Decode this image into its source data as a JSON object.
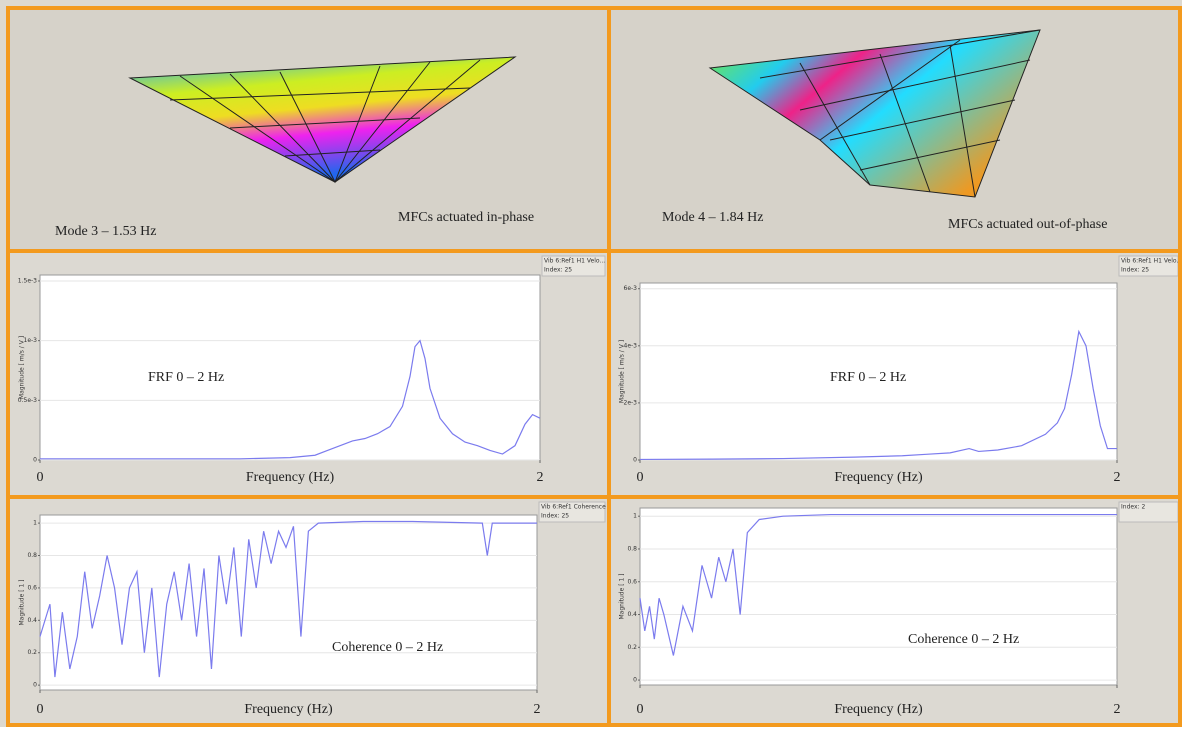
{
  "mode_panels": [
    {
      "mode": "Mode 3 – 1.53 Hz",
      "note": "MFCs actuated in-phase"
    },
    {
      "mode": "Mode 4 – 1.84 Hz",
      "note": "MFCs actuated out-of-phase"
    }
  ],
  "chart_data": [
    {
      "type": "line",
      "annotation": "FRF 0 – 2 Hz",
      "x_label": "Frequency (Hz)",
      "y_label": "Magnitude [ m/s / V ]",
      "legend_lines": [
        "Vib 6:Ref1 H1 Velo...",
        "Index: 25"
      ],
      "xlim": [
        0,
        2
      ],
      "xticks": [
        0,
        2
      ],
      "ylim": [
        0,
        0.00155
      ],
      "yticks": [
        0,
        {
          "value": 0.0005,
          "label": "0.5e-3"
        },
        {
          "value": 0.001,
          "label": "1e-3"
        },
        {
          "value": 0.0015,
          "label": "1.5e-3"
        }
      ],
      "grid": true,
      "x": [
        0,
        0.2,
        0.4,
        0.6,
        0.8,
        1.0,
        1.1,
        1.15,
        1.2,
        1.25,
        1.3,
        1.35,
        1.4,
        1.45,
        1.48,
        1.5,
        1.52,
        1.54,
        1.56,
        1.6,
        1.65,
        1.7,
        1.75,
        1.8,
        1.85,
        1.9,
        1.94,
        1.97,
        2.0
      ],
      "series": [
        {
          "color": "#7b7bee",
          "values": [
            1e-05,
            1e-05,
            1e-05,
            1e-05,
            1e-05,
            2e-05,
            4e-05,
            8e-05,
            0.00012,
            0.00016,
            0.00018,
            0.00022,
            0.00028,
            0.00045,
            0.0007,
            0.00095,
            0.001,
            0.00085,
            0.0006,
            0.00035,
            0.00022,
            0.00015,
            0.00012,
            8e-05,
            5e-05,
            0.00012,
            0.0003,
            0.00038,
            0.00035
          ]
        }
      ]
    },
    {
      "type": "line",
      "annotation": "FRF 0 – 2 Hz",
      "x_label": "Frequency (Hz)",
      "y_label": "Magnitude [ m/s / V ]",
      "legend_lines": [
        "Vib 6:Ref1 H1 Velo...",
        "Index: 25"
      ],
      "xlim": [
        0,
        2
      ],
      "xticks": [
        0,
        2
      ],
      "ylim": [
        0,
        0.0062
      ],
      "yticks": [
        0,
        {
          "value": 0.002,
          "label": "2e-3"
        },
        {
          "value": 0.004,
          "label": "4e-3"
        },
        {
          "value": 0.006,
          "label": "6e-3"
        }
      ],
      "grid": true,
      "x": [
        0,
        0.3,
        0.6,
        0.9,
        1.1,
        1.2,
        1.3,
        1.38,
        1.42,
        1.5,
        1.6,
        1.7,
        1.75,
        1.78,
        1.81,
        1.84,
        1.87,
        1.9,
        1.93,
        1.96,
        2.0
      ],
      "series": [
        {
          "color": "#7b7bee",
          "values": [
            2e-05,
            3e-05,
            5e-05,
            0.0001,
            0.00015,
            0.0002,
            0.00025,
            0.0004,
            0.0003,
            0.00035,
            0.0005,
            0.0009,
            0.0013,
            0.0018,
            0.003,
            0.0045,
            0.004,
            0.0025,
            0.0012,
            0.0004,
            0.0004
          ]
        }
      ]
    },
    {
      "type": "line",
      "annotation": "Coherence 0 – 2 Hz",
      "x_label": "Frequency (Hz)",
      "y_label": "Magnitude [ 1 ]",
      "legend_lines": [
        "Vib 6:Ref1 Coherence",
        "Index: 25"
      ],
      "xlim": [
        0,
        2
      ],
      "xticks": [
        0,
        2
      ],
      "ylim": [
        -0.03,
        1.05
      ],
      "yticks": [
        0,
        0.2,
        0.4,
        0.6,
        0.8,
        1
      ],
      "grid": true,
      "x": [
        0,
        0.04,
        0.06,
        0.09,
        0.12,
        0.15,
        0.18,
        0.21,
        0.24,
        0.27,
        0.3,
        0.33,
        0.36,
        0.39,
        0.42,
        0.45,
        0.48,
        0.51,
        0.54,
        0.57,
        0.6,
        0.63,
        0.66,
        0.69,
        0.72,
        0.75,
        0.78,
        0.81,
        0.84,
        0.87,
        0.9,
        0.93,
        0.96,
        0.99,
        1.02,
        1.05,
        1.08,
        1.12,
        1.3,
        1.5,
        1.78,
        1.8,
        1.82,
        2.0
      ],
      "series": [
        {
          "color": "#7b7bee",
          "values": [
            0.3,
            0.5,
            0.05,
            0.45,
            0.1,
            0.3,
            0.7,
            0.35,
            0.55,
            0.8,
            0.6,
            0.25,
            0.6,
            0.7,
            0.2,
            0.6,
            0.05,
            0.5,
            0.7,
            0.4,
            0.75,
            0.3,
            0.72,
            0.1,
            0.8,
            0.5,
            0.85,
            0.3,
            0.9,
            0.6,
            0.95,
            0.75,
            0.95,
            0.85,
            0.98,
            0.3,
            0.95,
            1.0,
            1.01,
            1.01,
            1.0,
            0.8,
            1.0,
            1.0
          ]
        }
      ]
    },
    {
      "type": "line",
      "annotation": "Coherence 0 – 2 Hz",
      "x_label": "Frequency (Hz)",
      "y_label": "Magnitude [ 1 ]",
      "legend_lines": [
        "Index: 2"
      ],
      "xlim": [
        0,
        2
      ],
      "xticks": [
        0,
        2
      ],
      "ylim": [
        -0.03,
        1.05
      ],
      "yticks": [
        0,
        0.2,
        0.4,
        0.6,
        0.8,
        1
      ],
      "grid": true,
      "x": [
        0,
        0.02,
        0.04,
        0.06,
        0.08,
        0.1,
        0.14,
        0.18,
        0.22,
        0.26,
        0.3,
        0.33,
        0.36,
        0.39,
        0.42,
        0.45,
        0.5,
        0.6,
        0.8,
        1.2,
        1.6,
        2.0
      ],
      "series": [
        {
          "color": "#7b7bee",
          "values": [
            0.5,
            0.3,
            0.45,
            0.25,
            0.5,
            0.4,
            0.15,
            0.45,
            0.3,
            0.7,
            0.5,
            0.75,
            0.6,
            0.8,
            0.4,
            0.9,
            0.98,
            1.0,
            1.01,
            1.01,
            1.01,
            1.01
          ]
        }
      ]
    }
  ]
}
